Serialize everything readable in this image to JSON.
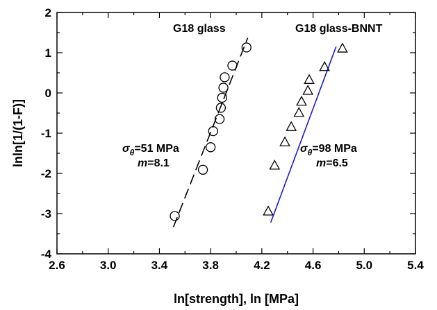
{
  "chart_data": {
    "type": "scatter",
    "xlabel": "ln[strength], ln [MPa]",
    "ylabel": "lnln[1/(1-F)]",
    "xlim": [
      2.6,
      5.4
    ],
    "ylim": [
      -4,
      2
    ],
    "x_ticks": [
      "2.6",
      "3.0",
      "3.4",
      "3.8",
      "4.2",
      "4.6",
      "5.0",
      "5.4"
    ],
    "y_ticks": [
      "2",
      "1",
      "0",
      "-1",
      "-2",
      "-3",
      "-4"
    ],
    "grid": false,
    "series": [
      {
        "name": "G18 glass",
        "marker": "circle",
        "color": "#000000",
        "points": [
          {
            "x": 3.52,
            "y": -3.06
          },
          {
            "x": 3.74,
            "y": -1.91
          },
          {
            "x": 3.8,
            "y": -1.35
          },
          {
            "x": 3.82,
            "y": -0.95
          },
          {
            "x": 3.87,
            "y": -0.65
          },
          {
            "x": 3.88,
            "y": -0.37
          },
          {
            "x": 3.89,
            "y": -0.12
          },
          {
            "x": 3.9,
            "y": 0.13
          },
          {
            "x": 3.91,
            "y": 0.39
          },
          {
            "x": 3.97,
            "y": 0.68
          },
          {
            "x": 4.08,
            "y": 1.13
          }
        ],
        "fit": {
          "style": "dashed",
          "color": "#000000",
          "x": [
            3.51,
            4.09
          ],
          "y": [
            -3.33,
            1.37
          ]
        },
        "annotation": {
          "sigma_symbol": "σ",
          "sigma_sub": "θ",
          "sigma_text": "=51 MPa",
          "m_symbol": "m",
          "m_text": "=8.1"
        }
      },
      {
        "name": "G18 glass-BNNT",
        "marker": "triangle",
        "color": "#000000",
        "points": [
          {
            "x": 4.25,
            "y": -2.95
          },
          {
            "x": 4.3,
            "y": -1.81
          },
          {
            "x": 4.38,
            "y": -1.23
          },
          {
            "x": 4.43,
            "y": -0.85
          },
          {
            "x": 4.49,
            "y": -0.5
          },
          {
            "x": 4.51,
            "y": -0.22
          },
          {
            "x": 4.56,
            "y": 0.05
          },
          {
            "x": 4.57,
            "y": 0.32
          },
          {
            "x": 4.69,
            "y": 0.64
          },
          {
            "x": 4.83,
            "y": 1.1
          }
        ],
        "fit": {
          "style": "solid",
          "color": "#1a1acc",
          "x": [
            4.27,
            4.78
          ],
          "y": [
            -3.22,
            1.15
          ]
        },
        "annotation": {
          "sigma_symbol": "σ",
          "sigma_sub": "θ",
          "sigma_text": "=98 MPa",
          "m_symbol": "m",
          "m_text": "=6.5"
        }
      }
    ]
  }
}
